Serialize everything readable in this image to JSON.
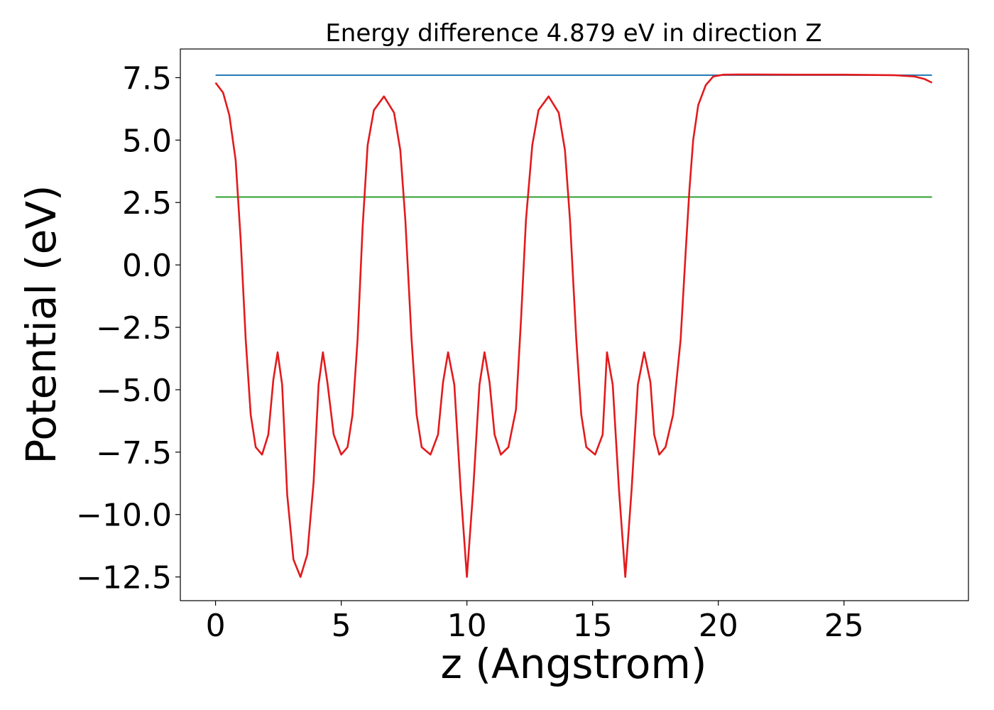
{
  "chart_data": {
    "type": "line",
    "title": "Energy difference 4.879 eV in direction Z",
    "xlabel": "z (Angstrom)",
    "ylabel": "Potential (eV)",
    "xlim": [
      -1.4,
      29.95
    ],
    "ylim": [
      -13.45,
      8.65
    ],
    "x_ticks": [
      0,
      5,
      10,
      15,
      20,
      25
    ],
    "x_tick_labels": [
      "0",
      "5",
      "10",
      "15",
      "20",
      "25"
    ],
    "y_ticks": [
      7.5,
      5.0,
      2.5,
      0.0,
      -2.5,
      -5.0,
      -7.5,
      -10.0,
      -12.5
    ],
    "y_tick_labels": [
      "7.5",
      "5.0",
      "2.5",
      "0.0",
      "−2.5",
      "−5.0",
      "−7.5",
      "−10.0",
      "−12.5"
    ],
    "grid": false,
    "legend": false,
    "colors": {
      "potential": "#e31a1c",
      "vacuum_level": "#1f77b4",
      "mean_level": "#2ca02c"
    },
    "series": [
      {
        "id": "vacuum_level",
        "color": "#1f77b4",
        "x": [
          0,
          28.5
        ],
        "y": [
          7.6,
          7.6
        ]
      },
      {
        "id": "mean_level",
        "color": "#2ca02c",
        "x": [
          0,
          28.5
        ],
        "y": [
          2.72,
          2.72
        ]
      },
      {
        "id": "potential",
        "color": "#e31a1c",
        "x": [
          0,
          0.3,
          0.55,
          0.8,
          1.0,
          1.2,
          1.4,
          1.6,
          1.85,
          2.1,
          2.3,
          2.47,
          2.65,
          2.85,
          3.1,
          3.38,
          3.65,
          3.9,
          4.1,
          4.27,
          4.45,
          4.7,
          5.0,
          5.25,
          5.45,
          5.65,
          5.85,
          6.05,
          6.3,
          6.7,
          7.1,
          7.35,
          7.55,
          7.8,
          8.0,
          8.2,
          8.55,
          8.85,
          9.05,
          9.25,
          9.5,
          9.75,
          10.0,
          10.25,
          10.5,
          10.7,
          10.9,
          11.1,
          11.35,
          11.65,
          11.95,
          12.15,
          12.35,
          12.6,
          12.85,
          13.25,
          13.65,
          13.9,
          14.1,
          14.35,
          14.55,
          14.75,
          15.1,
          15.4,
          15.57,
          15.8,
          16.05,
          16.3,
          16.55,
          16.8,
          17.05,
          17.3,
          17.45,
          17.65,
          17.9,
          18.2,
          18.5,
          18.7,
          18.85,
          19.0,
          19.2,
          19.5,
          19.8,
          20.2,
          20.8,
          21.5,
          23.0,
          25.0,
          27.0,
          27.8,
          28.2,
          28.5
        ],
        "y": [
          7.3,
          6.9,
          6.0,
          4.2,
          1.0,
          -3.0,
          -6.0,
          -7.3,
          -7.6,
          -6.8,
          -4.6,
          -3.5,
          -4.8,
          -9.2,
          -11.8,
          -12.5,
          -11.6,
          -8.7,
          -4.8,
          -3.5,
          -4.7,
          -6.8,
          -7.6,
          -7.3,
          -6.0,
          -3.0,
          1.5,
          4.8,
          6.2,
          6.75,
          6.1,
          4.6,
          1.8,
          -3.0,
          -6.0,
          -7.3,
          -7.6,
          -6.8,
          -4.7,
          -3.5,
          -4.8,
          -9.0,
          -12.5,
          -9.0,
          -4.8,
          -3.5,
          -4.7,
          -6.8,
          -7.6,
          -7.3,
          -5.8,
          -2.2,
          1.8,
          4.8,
          6.2,
          6.75,
          6.1,
          4.6,
          1.8,
          -3.0,
          -6.0,
          -7.3,
          -7.6,
          -6.8,
          -3.5,
          -4.8,
          -9.0,
          -12.5,
          -9.0,
          -4.8,
          -3.5,
          -4.7,
          -6.8,
          -7.6,
          -7.3,
          -6.0,
          -3.0,
          0.5,
          3.0,
          5.0,
          6.4,
          7.2,
          7.55,
          7.62,
          7.63,
          7.63,
          7.62,
          7.62,
          7.6,
          7.55,
          7.45,
          7.3
        ]
      }
    ]
  }
}
